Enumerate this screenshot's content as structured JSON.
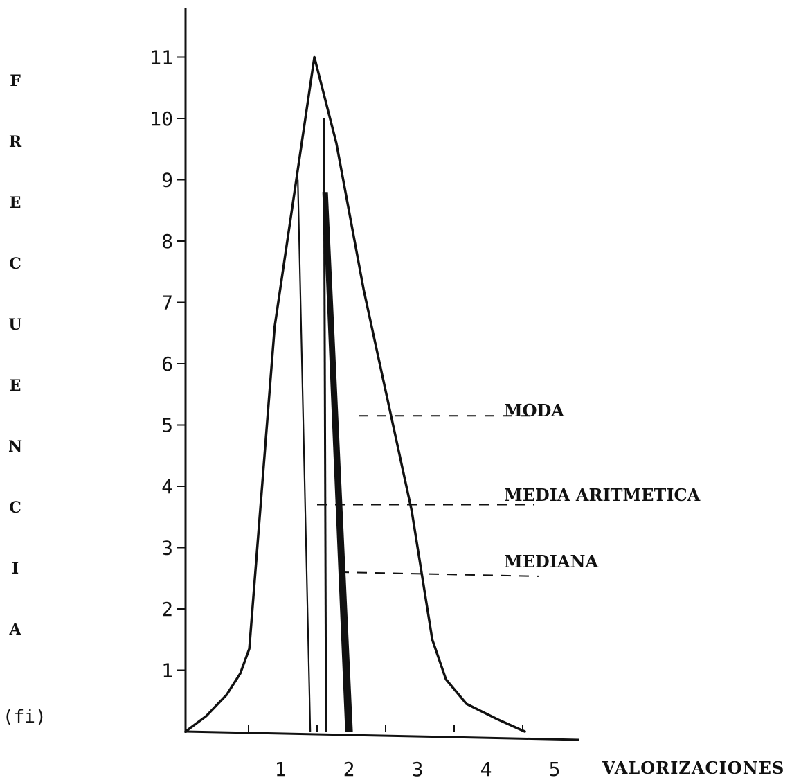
{
  "chart_data": {
    "type": "line",
    "ylabel": "FRECUENCIA",
    "ylabel_unit": "(fi)",
    "xlabel": "VALORIZACIONES",
    "xlim": [
      0,
      5.5
    ],
    "ylim": [
      0,
      11.6
    ],
    "x_ticks": [
      1,
      2,
      3,
      4,
      5
    ],
    "y_ticks": [
      1,
      2,
      3,
      4,
      5,
      6,
      7,
      8,
      9,
      10,
      11
    ],
    "curve": [
      {
        "x": 0.0,
        "y": 0.0
      },
      {
        "x": 0.3,
        "y": 0.25
      },
      {
        "x": 0.6,
        "y": 0.6
      },
      {
        "x": 0.8,
        "y": 0.95
      },
      {
        "x": 0.93,
        "y": 1.35
      },
      {
        "x": 1.3,
        "y": 6.6
      },
      {
        "x": 1.88,
        "y": 11.0
      },
      {
        "x": 2.2,
        "y": 9.6
      },
      {
        "x": 2.6,
        "y": 7.2
      },
      {
        "x": 3.3,
        "y": 3.6
      },
      {
        "x": 3.6,
        "y": 1.5
      },
      {
        "x": 3.8,
        "y": 0.85
      },
      {
        "x": 4.1,
        "y": 0.45
      },
      {
        "x": 4.55,
        "y": 0.2
      },
      {
        "x": 4.95,
        "y": 0.0
      }
    ],
    "vertical_lines": [
      {
        "x": 1.82,
        "y": 9.0,
        "style": "thin"
      },
      {
        "x": 2.05,
        "y": 10.0,
        "style": "medium"
      },
      {
        "x": 2.38,
        "y": 8.8,
        "style": "bold"
      }
    ],
    "annotations": [
      {
        "label": "MODA",
        "y": 5.15
      },
      {
        "label": "MEDIA ARITMETICA",
        "y": 3.7
      },
      {
        "label": "MEDIANA",
        "y": 2.6
      }
    ]
  }
}
